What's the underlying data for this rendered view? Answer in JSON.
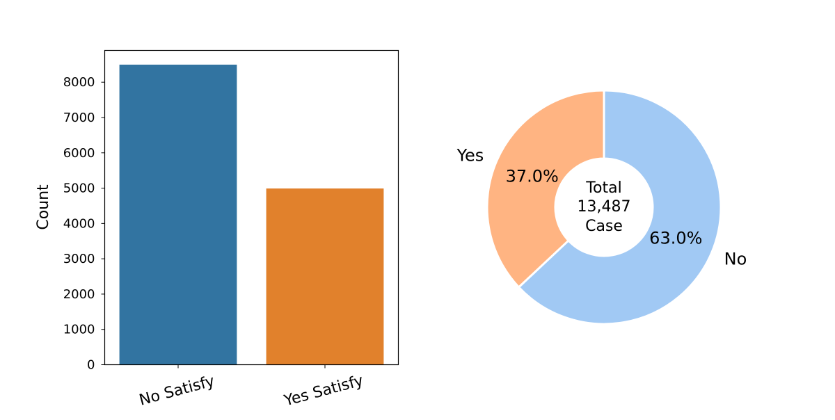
{
  "chart_data": [
    {
      "type": "bar",
      "categories": [
        "No Satisfy",
        "Yes Satisfy"
      ],
      "values": [
        8497,
        4990
      ],
      "colors": [
        "#3274a1",
        "#e1812c"
      ],
      "title": "",
      "xlabel": "",
      "ylabel": "Count",
      "ylim": [
        0,
        8900
      ],
      "yticks": [
        "0",
        "1000",
        "2000",
        "3000",
        "4000",
        "5000",
        "6000",
        "7000",
        "8000"
      ],
      "grid": false
    },
    {
      "type": "pie",
      "donut": true,
      "labels": [
        "No",
        "Yes"
      ],
      "values": [
        63.0,
        37.0
      ],
      "pct_labels": [
        "63.0%",
        "37.0%"
      ],
      "colors": [
        "#a1c9f4",
        "#ffb482"
      ],
      "center_text": [
        "Total",
        "13,487",
        "Case"
      ],
      "title": ""
    }
  ]
}
